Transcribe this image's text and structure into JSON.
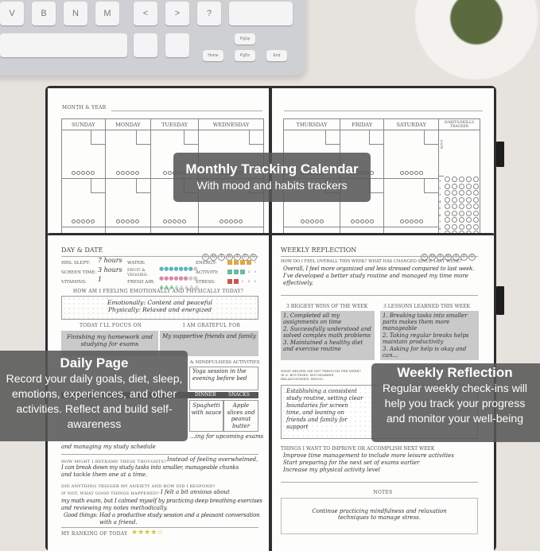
{
  "keyboard": {
    "keys": [
      "V",
      "B",
      "N",
      "M",
      "<",
      ">",
      "?",
      "PgUp",
      "Home",
      "PgDn",
      "End"
    ]
  },
  "monthly": {
    "month_year_label": "MONTH & YEAR",
    "days": [
      "SUNDAY",
      "MONDAY",
      "TUESDAY",
      "WEDNESDAY",
      "THURSDAY",
      "FRIDAY",
      "SATURDAY"
    ],
    "tracker_label": "HABITS/SKILLS TRACKER",
    "date_label": "DATE",
    "tracker_rows": [
      "1",
      "2",
      "3",
      "4",
      "5",
      "6",
      "7",
      "8",
      "9"
    ]
  },
  "daily": {
    "title": "DAY & DATE",
    "weekdays": [
      "S",
      "M",
      "T",
      "W",
      "T",
      "F",
      "S"
    ],
    "hrs_slept_label": "HRS. SLEPT:",
    "hrs_slept": "7 hours",
    "screen_time_label": "SCREEN TIME:",
    "screen_time": "3 hours",
    "vitamins_label": "VITAMINS:",
    "vitamins": "1",
    "water_label": "WATER:",
    "water_filled": 7,
    "water_total": 8,
    "fruit_label": "FRUIT & VEGGIES:",
    "fruit_filled": 6,
    "fruit_total": 8,
    "fresh_air_label": "FRESH AIR:",
    "fresh_air_filled": 3,
    "fresh_air_total": 8,
    "energy_label": "ENERGY:",
    "energy_level": 4,
    "activity_label": "ACTIVITY:",
    "activity_level": 3,
    "stress_label": "STRESS:",
    "stress_level": 2,
    "scale_max": 5,
    "colors": {
      "water": "#5fb3c4",
      "fruit": "#d88aa8",
      "fresh_air": "#7dbf8a",
      "energy": "#e0a646",
      "activity": "#69b9a8",
      "stress": "#c9544f"
    },
    "feeling_question": "HOW AM I FEELING EMOTIONALLY AND PHYSICALLY TODAY?",
    "feeling_lines": [
      "Emotionally: Content and peaceful",
      "Physically: Relaxed and energized"
    ],
    "focus_label": "TODAY I'LL FOCUS ON",
    "focus": "Finishing my homework and studying for exams",
    "grateful_label": "I AM GRATEFUL FOR",
    "grateful": "My supportive friends and family",
    "mindfulness_label": "& MINDFULNESS ACTIVITIES",
    "mindfulness": "Yoga session in the evening before bed",
    "meals_headers": [
      "DINNER",
      "SNACKS"
    ],
    "dinner": "Spaghetti with sauce",
    "snacks": "Apple slices and peanut butter",
    "worry_lines": [
      "...ing for upcoming exams",
      "and managing my study schedule"
    ],
    "reframe_label": "HOW MIGHT I REFRAME THESE THOUGHTS?",
    "reframe": [
      "Instead of feeling overwhelmed,",
      "I can break down my study tasks into smaller, manageable chunks",
      "and tackle them one at a time."
    ],
    "trigger_label": "DID ANYTHING TRIGGER MY ANXIETY AND HOW DID I RESPOND?",
    "good_things_label": "IF NOT, WHAT GOOD THINGS HAPPENED?",
    "trigger": [
      "I felt a bit anxious about",
      "my math exam, but I calmed myself by practicing deep breathing exercises",
      "and reviewing my notes methodically.",
      "Good things: Had a productive study session and a pleasant conversation",
      "with a friend."
    ],
    "ranking_label": "MY RANKING OF TODAY",
    "ranking": 4,
    "ranking_max": 5
  },
  "weekly": {
    "title": "WEEKLY REFLECTION",
    "weekdays": [
      "S",
      "M",
      "T",
      "W",
      "T",
      "F",
      "S"
    ],
    "overall_question": "HOW DO I FEEL OVERALL THIS WEEK? WHAT HAS CHANGED SINCE LAST WEEK?",
    "overall": [
      "Overall, I feel more organized and less stressed compared to last week.",
      "I've developed a better study routine and managed my time more",
      "effectively."
    ],
    "wins_label": "3 BIGGEST WINS OF THE WEEK",
    "wins": [
      "1. Completed all my assignments on time",
      "2. Successfully understood and solved complex math problems",
      "3. Maintained a healthy diet and exercise routine"
    ],
    "lessons_label": "3 LESSONS LEARNED THIS WEEK",
    "lessons": [
      "1. Breaking tasks into smaller parts makes them more manageable",
      "2. Taking regular breaks helps maintain productivity",
      "3. Asking for help is okay and can..."
    ],
    "helped_label": "WHAT HELPED ME GET THROUGH THE WEEK? (E.G. ROUTINES, BOUNDARIES, RELATIONSHIPS, RESOU...",
    "helped": "Establishing a consistent study routine, setting clear boundaries for screen time, and leaning on friends and family for support",
    "improve_label": "THINGS I WANT TO IMPROVE OR ACCOMPLISH NEXT WEEK",
    "improve": [
      "Improve time management to include more leisure activities",
      "Start preparing for the next set of exams earlier",
      "Increase my physical activity level"
    ],
    "notes_label": "NOTES",
    "notes": "Continue practicing mindfulness and relaxation techniques to manage stress."
  },
  "overlays": {
    "monthly": {
      "title": "Monthly Tracking Calendar",
      "subtitle": "With mood and habits trackers"
    },
    "daily": {
      "title": "Daily Page",
      "body": "Record your daily goals, diet, sleep, emotions, experiences, and other activities. Reflect and build self-awareness"
    },
    "weekly": {
      "title": "Weekly Reflection",
      "body": "Regular weekly check-ins will help you track your progress and monitor your well-being"
    }
  }
}
